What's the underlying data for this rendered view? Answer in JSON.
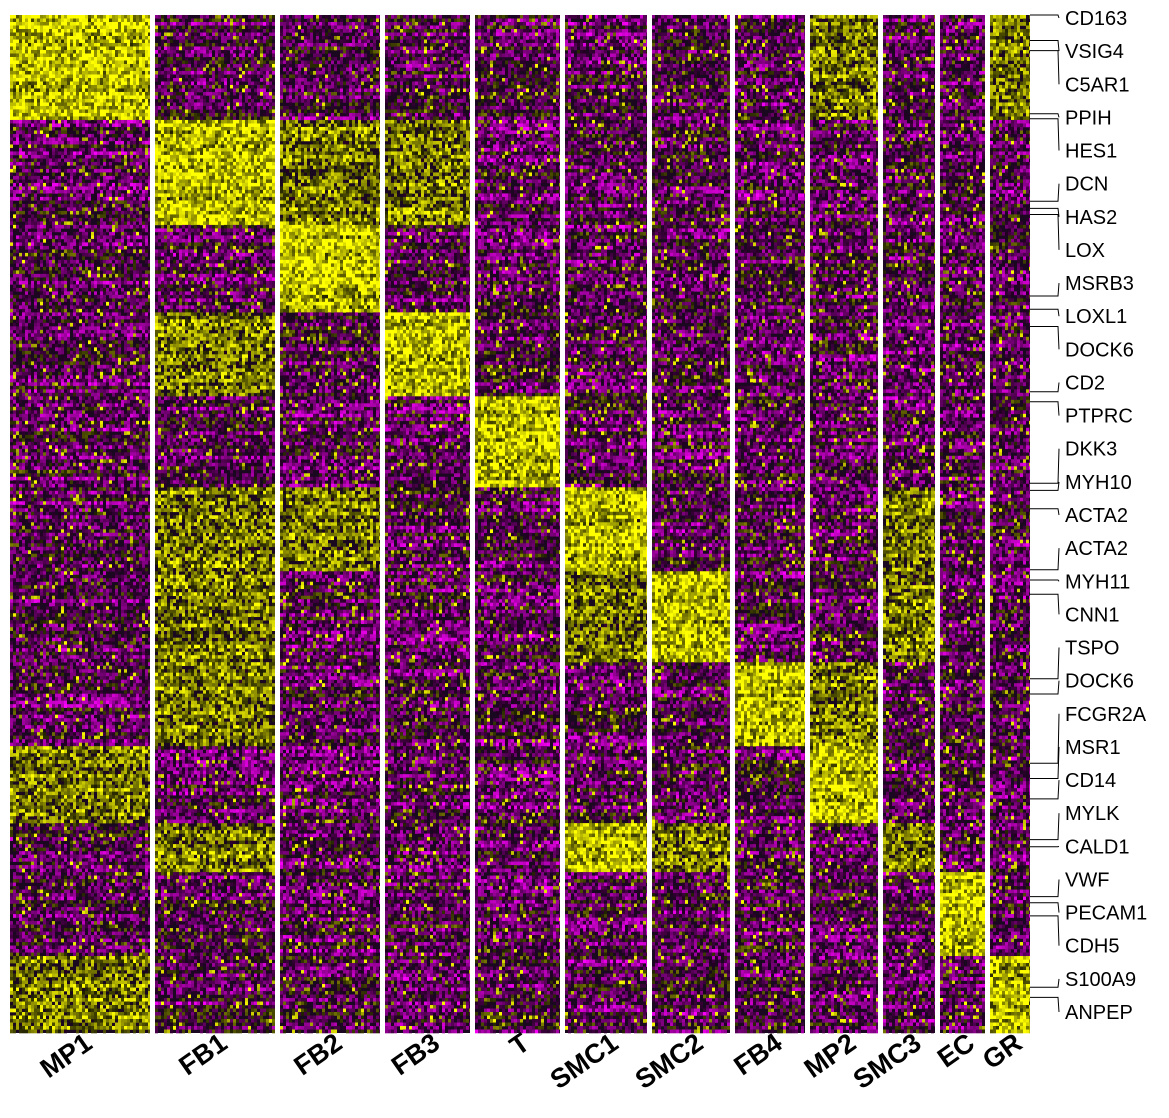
{
  "chart_data": {
    "type": "heatmap",
    "colors": {
      "low": "#FF00FF",
      "mid": "#000000",
      "high": "#FFFF00"
    },
    "clusters": [
      {
        "name": "MP1",
        "width": 140
      },
      {
        "name": "FB1",
        "width": 120
      },
      {
        "name": "FB2",
        "width": 100
      },
      {
        "name": "FB3",
        "width": 85
      },
      {
        "name": "T",
        "width": 85
      },
      {
        "name": "SMC1",
        "width": 82
      },
      {
        "name": "SMC2",
        "width": 78
      },
      {
        "name": "FB4",
        "width": 70
      },
      {
        "name": "MP2",
        "width": 68
      },
      {
        "name": "SMC3",
        "width": 52
      },
      {
        "name": "EC",
        "width": 45
      },
      {
        "name": "GR",
        "width": 40
      }
    ],
    "row_blocks": [
      {
        "signature": "MP1",
        "rows": 30
      },
      {
        "signature": "FB1",
        "rows": 30
      },
      {
        "signature": "FB2",
        "rows": 25
      },
      {
        "signature": "FB3",
        "rows": 24
      },
      {
        "signature": "T",
        "rows": 26
      },
      {
        "signature": "SMC1",
        "rows": 24
      },
      {
        "signature": "SMC2",
        "rows": 26
      },
      {
        "signature": "FB4",
        "rows": 24
      },
      {
        "signature": "MP2",
        "rows": 22
      },
      {
        "signature": "SMC3",
        "rows": 14
      },
      {
        "signature": "EC",
        "rows": 24
      },
      {
        "signature": "GR",
        "rows": 22
      }
    ],
    "high_expression": [
      {
        "block": 0,
        "clusters": [
          "MP1",
          "MP2",
          "GR"
        ]
      },
      {
        "block": 1,
        "clusters": [
          "FB1",
          "FB2",
          "FB3"
        ]
      },
      {
        "block": 2,
        "clusters": [
          "FB2"
        ]
      },
      {
        "block": 3,
        "clusters": [
          "FB3",
          "FB1"
        ]
      },
      {
        "block": 4,
        "clusters": [
          "T"
        ]
      },
      {
        "block": 5,
        "clusters": [
          "SMC1",
          "FB1",
          "FB2",
          "SMC3"
        ]
      },
      {
        "block": 6,
        "clusters": [
          "SMC2",
          "SMC1",
          "FB1",
          "SMC3"
        ]
      },
      {
        "block": 7,
        "clusters": [
          "FB4",
          "FB1",
          "MP2"
        ]
      },
      {
        "block": 8,
        "clusters": [
          "MP2",
          "MP1"
        ]
      },
      {
        "block": 9,
        "clusters": [
          "SMC1",
          "SMC2",
          "SMC3",
          "FB1"
        ]
      },
      {
        "block": 10,
        "clusters": [
          "EC"
        ]
      },
      {
        "block": 11,
        "clusters": [
          "GR",
          "MP1"
        ]
      }
    ],
    "genes": [
      "CD163",
      "VSIG4",
      "C5AR1",
      "PPIH",
      "HES1",
      "DCN",
      "HAS2",
      "LOX",
      "MSRB3",
      "LOXL1",
      "DOCK6",
      "CD2",
      "PTPRC",
      "DKK3",
      "MYH10",
      "ACTA2",
      "ACTA2",
      "MYH11",
      "CNN1",
      "TSPO",
      "DOCK6",
      "FCGR2A",
      "MSR1",
      "CD14",
      "MYLK",
      "CALD1",
      "VWF",
      "PECAM1",
      "CDH5",
      "S100A9",
      "ANPEP"
    ],
    "gene_row_fraction": [
      0.0,
      0.025,
      0.035,
      0.097,
      0.102,
      0.183,
      0.19,
      0.196,
      0.276,
      0.289,
      0.306,
      0.37,
      0.38,
      0.46,
      0.467,
      0.485,
      0.545,
      0.555,
      0.569,
      0.652,
      0.667,
      0.735,
      0.75,
      0.77,
      0.81,
      0.817,
      0.866,
      0.872,
      0.885,
      0.955,
      0.965
    ]
  }
}
